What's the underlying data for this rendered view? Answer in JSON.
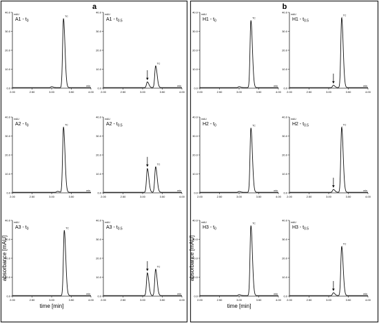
{
  "figure": {
    "group_labels": [
      "a",
      "b"
    ],
    "y_axis_title": "absorbance [mAU]",
    "x_axis_title": "time [min]",
    "y_unit_tag": "mAU",
    "x_unit_tag": "min",
    "peak_tag": "TC",
    "line_color": "#111111",
    "frame_color": "#222222"
  },
  "chart_data": [
    {
      "type": "line",
      "group": "a",
      "label": "A1 - t0",
      "label_main": "A1 - t",
      "label_sub": "0",
      "xlim": [
        2.0,
        4.0
      ],
      "ylim": [
        0,
        40
      ],
      "xticks": [
        "2.00",
        "2.50",
        "3.00",
        "3.50",
        "4.00"
      ],
      "yticks": [
        "0.0",
        "10.0",
        "20.0",
        "30.0",
        "40.0"
      ],
      "peaks": [
        {
          "time": 3.3,
          "height": 36.5,
          "label": "TC",
          "arrow": false
        }
      ],
      "minor_peaks": [
        {
          "time": 3.0,
          "height": 0.5
        }
      ],
      "baseline": 0.3,
      "has_axis_titles": false
    },
    {
      "type": "line",
      "group": "a",
      "label": "A1 - t0.5",
      "label_main": "A1 - t",
      "label_sub": "0.5",
      "xlim": [
        2.0,
        4.0
      ],
      "ylim": [
        0,
        40
      ],
      "xticks": [
        "2.00",
        "2.50",
        "3.00",
        "3.50",
        "4.00"
      ],
      "yticks": [
        "0.0",
        "10.0",
        "20.0",
        "30.0",
        "40.0"
      ],
      "peaks": [
        {
          "time": 3.12,
          "height": 3.0,
          "label": "",
          "arrow": true
        },
        {
          "time": 3.33,
          "height": 11.5,
          "label": "TC",
          "arrow": false
        }
      ],
      "minor_peaks": [],
      "baseline": 0.3,
      "has_axis_titles": false
    },
    {
      "type": "line",
      "group": "a",
      "label": "A2 - t0",
      "label_main": "A2 - t",
      "label_sub": "0",
      "xlim": [
        2.0,
        4.0
      ],
      "ylim": [
        0,
        40
      ],
      "xticks": [
        "2.00",
        "2.50",
        "3.00",
        "3.50"
      ],
      "yticks": [
        "0.0",
        "10.0",
        "20.0",
        "30.0",
        "40.0"
      ],
      "peaks": [
        {
          "time": 3.3,
          "height": 34.5,
          "label": "TC",
          "arrow": false
        }
      ],
      "minor_peaks": [
        {
          "time": 3.15,
          "height": 0.5
        }
      ],
      "baseline": 0.3,
      "has_axis_titles": false
    },
    {
      "type": "line",
      "group": "a",
      "label": "A2 - t0.5",
      "label_main": "A2 - t",
      "label_sub": "0.5",
      "xlim": [
        2.0,
        4.0
      ],
      "ylim": [
        0,
        40
      ],
      "xticks": [
        "2.00",
        "2.50",
        "3.00",
        "3.50",
        "4.00"
      ],
      "yticks": [
        "0.0",
        "10.0",
        "20.0",
        "30.0",
        "40.0"
      ],
      "peaks": [
        {
          "time": 3.12,
          "height": 12.5,
          "label": "",
          "arrow": true
        },
        {
          "time": 3.33,
          "height": 13.5,
          "label": "TC",
          "arrow": false
        }
      ],
      "minor_peaks": [],
      "baseline": 0.3,
      "has_axis_titles": false
    },
    {
      "type": "line",
      "group": "a",
      "label": "A3 - t0",
      "label_main": "A3 - t",
      "label_sub": "0",
      "xlim": [
        2.0,
        4.0
      ],
      "ylim": [
        0,
        40
      ],
      "xticks": [
        "2.00",
        "2.50",
        "3.00",
        "3.50",
        "4.00"
      ],
      "yticks": [
        "0.0",
        "10.0",
        "20.0",
        "30.0",
        "40.0"
      ],
      "peaks": [
        {
          "time": 3.32,
          "height": 34.5,
          "label": "TC",
          "arrow": false
        }
      ],
      "minor_peaks": [],
      "baseline": 0.3,
      "has_axis_titles": true
    },
    {
      "type": "line",
      "group": "a",
      "label": "A3 - t0.5",
      "label_main": "A3 - t",
      "label_sub": "0.5",
      "xlim": [
        2.0,
        4.0
      ],
      "ylim": [
        0,
        40
      ],
      "xticks": [
        "2.00",
        "2.50",
        "3.00",
        "3.50",
        "4.00"
      ],
      "yticks": [
        "0.0",
        "10.0",
        "20.0",
        "30.0",
        "40.0"
      ],
      "peaks": [
        {
          "time": 3.12,
          "height": 12.0,
          "label": "",
          "arrow": true
        },
        {
          "time": 3.33,
          "height": 14.0,
          "label": "TC",
          "arrow": false
        }
      ],
      "minor_peaks": [],
      "baseline": 0.3,
      "has_axis_titles": false
    },
    {
      "type": "line",
      "group": "b",
      "label": "H1 - t0",
      "label_main": "H1 - t",
      "label_sub": "0",
      "xlim": [
        2.0,
        4.0
      ],
      "ylim": [
        0,
        40
      ],
      "xticks": [
        "2.00",
        "2.50",
        "3.00",
        "3.50",
        "4.00"
      ],
      "yticks": [
        "0.0",
        "10.0",
        "20.0",
        "30.0",
        "40.0"
      ],
      "peaks": [
        {
          "time": 3.3,
          "height": 35.5,
          "label": "TC",
          "arrow": false
        }
      ],
      "minor_peaks": [
        {
          "time": 3.0,
          "height": 0.5
        }
      ],
      "baseline": 0.3,
      "has_axis_titles": false
    },
    {
      "type": "line",
      "group": "b",
      "label": "H1 - t0.5",
      "label_main": "H1 - t",
      "label_sub": "0.5",
      "xlim": [
        2.0,
        4.0
      ],
      "ylim": [
        0,
        40
      ],
      "xticks": [
        "2.00",
        "2.50",
        "3.00",
        "3.50",
        "4.00"
      ],
      "yticks": [
        "0.0",
        "10.0",
        "20.0",
        "30.0",
        "40.0"
      ],
      "peaks": [
        {
          "time": 3.12,
          "height": 1.2,
          "label": "",
          "arrow": true
        },
        {
          "time": 3.33,
          "height": 37.0,
          "label": "TC",
          "arrow": false
        }
      ],
      "minor_peaks": [],
      "baseline": 0.3,
      "has_axis_titles": false
    },
    {
      "type": "line",
      "group": "b",
      "label": "H2 - t0",
      "label_main": "H2 - t",
      "label_sub": "0",
      "xlim": [
        2.0,
        4.0
      ],
      "ylim": [
        0,
        40
      ],
      "xticks": [
        "2.00",
        "2.50",
        "3.00",
        "3.50",
        "4.00"
      ],
      "yticks": [
        "0.0",
        "10.0",
        "20.0",
        "30.0",
        "40.0"
      ],
      "peaks": [
        {
          "time": 3.3,
          "height": 34.0,
          "label": "TC",
          "arrow": false
        }
      ],
      "minor_peaks": [
        {
          "time": 3.0,
          "height": 0.4
        }
      ],
      "baseline": 0.3,
      "has_axis_titles": false
    },
    {
      "type": "line",
      "group": "b",
      "label": "H2 - t0.5",
      "label_main": "H2 - t",
      "label_sub": "0.5",
      "xlim": [
        2.0,
        4.0
      ],
      "ylim": [
        0,
        40
      ],
      "xticks": [
        "2.00",
        "2.50",
        "3.00",
        "3.50",
        "4.00"
      ],
      "yticks": [
        "0.0",
        "10.0",
        "20.0",
        "30.0",
        "40.0"
      ],
      "peaks": [
        {
          "time": 3.12,
          "height": 1.5,
          "label": "",
          "arrow": true
        },
        {
          "time": 3.33,
          "height": 34.5,
          "label": "TC",
          "arrow": false
        }
      ],
      "minor_peaks": [],
      "baseline": 0.3,
      "has_axis_titles": false
    },
    {
      "type": "line",
      "group": "b",
      "label": "H3 - t0",
      "label_main": "H3 - t",
      "label_sub": "0",
      "xlim": [
        2.0,
        4.0
      ],
      "ylim": [
        0,
        40
      ],
      "xticks": [
        "2.00",
        "2.50",
        "3.00",
        "3.50",
        "4.00"
      ],
      "yticks": [
        "0.0",
        "10.0",
        "20.0",
        "30.0",
        "40.0"
      ],
      "peaks": [
        {
          "time": 3.3,
          "height": 37.0,
          "label": "TC",
          "arrow": false
        }
      ],
      "minor_peaks": [
        {
          "time": 3.0,
          "height": 0.5
        }
      ],
      "baseline": 0.3,
      "has_axis_titles": true
    },
    {
      "type": "line",
      "group": "b",
      "label": "H3 - t0.5",
      "label_main": "H3 - t",
      "label_sub": "0.5",
      "xlim": [
        2.0,
        4.0
      ],
      "ylim": [
        0,
        40
      ],
      "xticks": [
        "2.00",
        "2.50",
        "3.00",
        "3.50",
        "4.00"
      ],
      "yticks": [
        "0.0",
        "10.0",
        "20.0",
        "30.0",
        "40.0"
      ],
      "peaks": [
        {
          "time": 3.12,
          "height": 1.5,
          "label": "",
          "arrow": true
        },
        {
          "time": 3.33,
          "height": 26.0,
          "label": "TC",
          "arrow": false
        }
      ],
      "minor_peaks": [],
      "baseline": 0.3,
      "has_axis_titles": false
    }
  ]
}
